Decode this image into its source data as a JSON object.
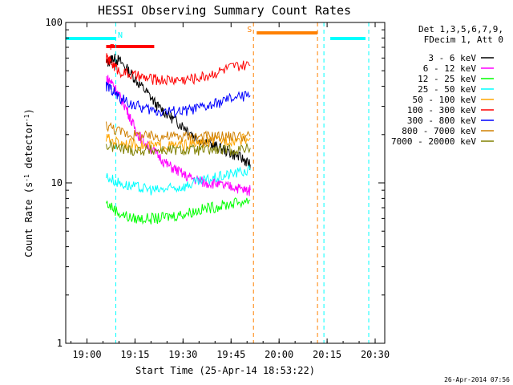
{
  "chart_data": {
    "type": "line",
    "title": "HESSI Observing Summary Count Rates",
    "xlabel": "Start Time (25-Apr-14 18:53:22)",
    "ylabel": "Count Rate (s⁻¹ detector⁻¹)",
    "ylabel_parts": [
      "Count Rate (s",
      "-1",
      " detector",
      "-1",
      ")"
    ],
    "yscale": "log",
    "ylim": [
      1,
      100
    ],
    "xlim": [
      "18:53:22",
      "20:33:00"
    ],
    "x_ticks": [
      "19:00",
      "19:15",
      "19:30",
      "19:45",
      "20:00",
      "20:15",
      "20:30"
    ],
    "y_ticks": [
      "1",
      "10",
      "100"
    ],
    "legend_header": [
      "Det 1,3,5,6,7,9,",
      "FDecim 1, Att 0"
    ],
    "footer_date": "26-Apr-2014 07:56",
    "series": [
      {
        "name": "3 - 6 keV",
        "color": "#000000",
        "x": [
          "19:06",
          "19:08",
          "19:10",
          "19:13",
          "19:16",
          "19:19",
          "19:22",
          "19:25",
          "19:28",
          "19:31",
          "19:34",
          "19:37",
          "19:40",
          "19:43",
          "19:46",
          "19:49",
          "19:51"
        ],
        "y": [
          55,
          60,
          58,
          50,
          42,
          36,
          30,
          27,
          24,
          22,
          19,
          18,
          17,
          16,
          15,
          14,
          13
        ]
      },
      {
        "name": "6 - 12 keV",
        "color": "#ff00ff",
        "x": [
          "19:06",
          "19:08",
          "19:10",
          "19:12",
          "19:14",
          "19:16",
          "19:19",
          "19:22",
          "19:25",
          "19:28",
          "19:31",
          "19:34",
          "19:37",
          "19:40",
          "19:43",
          "19:46",
          "19:49",
          "19:51"
        ],
        "y": [
          45,
          42,
          35,
          30,
          24,
          20,
          17,
          15,
          13,
          12,
          11,
          10.5,
          10,
          10,
          9.5,
          9.5,
          9,
          9
        ]
      },
      {
        "name": "12 - 25 keV",
        "color": "#00ff00",
        "x": [
          "19:06",
          "19:10",
          "19:14",
          "19:18",
          "19:22",
          "19:26",
          "19:30",
          "19:34",
          "19:38",
          "19:42",
          "19:46",
          "19:51"
        ],
        "y": [
          7.5,
          6.5,
          6.0,
          6.0,
          6.0,
          6.2,
          6.4,
          6.7,
          7.0,
          7.2,
          7.5,
          7.8
        ]
      },
      {
        "name": "25 - 50 keV",
        "color": "#00ffff",
        "x": [
          "19:06",
          "19:10",
          "19:14",
          "19:18",
          "19:22",
          "19:26",
          "19:30",
          "19:34",
          "19:38",
          "19:42",
          "19:46",
          "19:51"
        ],
        "y": [
          11,
          10,
          9.5,
          9.2,
          9.0,
          9.2,
          9.5,
          10,
          10.5,
          11,
          11.5,
          12
        ]
      },
      {
        "name": "50 - 100 keV",
        "color": "#ffa500",
        "x": [
          "19:06",
          "19:10",
          "19:14",
          "19:18",
          "19:22",
          "19:26",
          "19:30",
          "19:34",
          "19:38",
          "19:42",
          "19:46",
          "19:51"
        ],
        "y": [
          19,
          18,
          17.5,
          17,
          17,
          17,
          17.2,
          17.5,
          18,
          18.5,
          18.5,
          19
        ]
      },
      {
        "name": "100 - 300 keV",
        "color": "#ff0000",
        "x": [
          "19:06",
          "19:08",
          "19:10",
          "19:14",
          "19:18",
          "19:22",
          "19:26",
          "19:30",
          "19:34",
          "19:38",
          "19:42",
          "19:46",
          "19:51"
        ],
        "y": [
          60,
          55,
          50,
          47,
          45,
          44,
          44,
          44,
          45,
          47,
          50,
          53,
          54
        ]
      },
      {
        "name": "300 - 800 keV",
        "color": "#0000ff",
        "x": [
          "19:06",
          "19:08",
          "19:10",
          "19:14",
          "19:18",
          "19:22",
          "19:26",
          "19:30",
          "19:34",
          "19:38",
          "19:42",
          "19:46",
          "19:51"
        ],
        "y": [
          40,
          38,
          34,
          31,
          29,
          28,
          28,
          28,
          29,
          30,
          32,
          34,
          35
        ]
      },
      {
        "name": "800 - 7000 keV",
        "color": "#d08000",
        "x": [
          "19:06",
          "19:10",
          "19:14",
          "19:18",
          "19:22",
          "19:26",
          "19:30",
          "19:34",
          "19:38",
          "19:42",
          "19:46",
          "19:51"
        ],
        "y": [
          23,
          21,
          20,
          19.5,
          19.5,
          19.5,
          19.5,
          19.5,
          19.5,
          19.5,
          19.5,
          19.5
        ]
      },
      {
        "name": "7000 - 20000 keV",
        "color": "#808000",
        "x": [
          "19:06",
          "19:10",
          "19:14",
          "19:18",
          "19:22",
          "19:26",
          "19:30",
          "19:34",
          "19:38",
          "19:42",
          "19:46",
          "19:51"
        ],
        "y": [
          17,
          16.5,
          16,
          16,
          16,
          16,
          16,
          16,
          16,
          16,
          16,
          16.5
        ]
      }
    ],
    "flags": [
      {
        "label": "N",
        "color": "#00ffff",
        "spans": [
          [
            "18:53:22",
            "19:09"
          ],
          [
            "20:16",
            "20:27"
          ]
        ]
      },
      {
        "label": "F",
        "color": "#ff0000",
        "spans": [
          [
            "19:06",
            "19:21"
          ]
        ]
      },
      {
        "label": "S",
        "color": "#ff8000",
        "spans": [
          [
            "19:53",
            "20:12"
          ]
        ]
      }
    ]
  }
}
